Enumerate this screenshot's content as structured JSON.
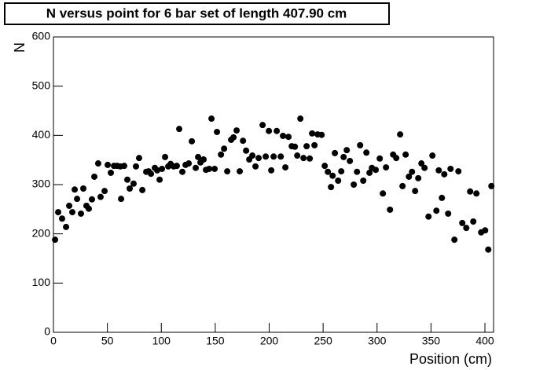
{
  "chart_data": {
    "type": "scatter",
    "title": "N versus point for 6 bar set of length 407.90 cm",
    "x_label": "Position (cm)",
    "y_label": "N",
    "color": "#000000",
    "xlim": [
      0,
      408
    ],
    "ylim": [
      0,
      600
    ],
    "xticks": [
      0,
      50,
      100,
      150,
      200,
      250,
      300,
      350,
      400
    ],
    "yticks": [
      0,
      100,
      200,
      300,
      400,
      500,
      600
    ],
    "series": [
      {
        "x": [
          1.5,
          4.4,
          8.0,
          11.7,
          14.6,
          17.5,
          19.7,
          21.9,
          25.5,
          27.7,
          30.6,
          32.8,
          35.7,
          37.9,
          41.5,
          43.7,
          47.4,
          50.3,
          53.2,
          56.1,
          59.0,
          62.0,
          62.7,
          65.6,
          68.5,
          70.7,
          74.3,
          76.5,
          79.4,
          82.4,
          86.0,
          88.2,
          90.4,
          94.0,
          96.2,
          98.4,
          100.6,
          103.5,
          106.4,
          108.6,
          111.5,
          114.4,
          116.6,
          119.5,
          122.5,
          125.4,
          128.3,
          131.9,
          134.1,
          136.3,
          139.2,
          141.4,
          144.3,
          146.5,
          149.4,
          151.6,
          155.3,
          158.2,
          161.1,
          164.7,
          166.9,
          169.8,
          172.7,
          175.7,
          178.6,
          181.5,
          184.4,
          187.3,
          190.2,
          193.9,
          196.8,
          199.7,
          201.9,
          204.1,
          207.0,
          210.7,
          212.8,
          215.0,
          217.9,
          220.9,
          223.8,
          226.0,
          228.9,
          231.8,
          234.7,
          237.6,
          239.8,
          242.0,
          244.9,
          248.6,
          251.5,
          254.4,
          257.3,
          258.8,
          260.9,
          263.9,
          266.8,
          269.0,
          271.9,
          274.8,
          278.4,
          281.4,
          284.3,
          287.2,
          290.1,
          293.0,
          295.2,
          298.8,
          302.5,
          305.4,
          308.3,
          312.0,
          314.9,
          317.8,
          321.4,
          323.6,
          326.5,
          329.5,
          332.4,
          335.3,
          338.2,
          341.1,
          344.0,
          347.7,
          351.3,
          355.0,
          357.2,
          360.1,
          362.3,
          365.9,
          368.1,
          371.7,
          375.4,
          379.0,
          382.7,
          386.3,
          389.2,
          392.1,
          396.5,
          400.2,
          403.1,
          406.0
        ],
        "y": [
          188,
          244,
          231,
          214,
          257,
          244,
          290,
          271,
          241,
          292,
          257,
          251,
          270,
          316,
          343,
          275,
          287,
          340,
          324,
          338,
          338,
          337,
          271,
          338,
          310,
          292,
          302,
          337,
          354,
          289,
          326,
          327,
          322,
          334,
          329,
          310,
          332,
          356,
          337,
          342,
          337,
          338,
          413,
          326,
          340,
          343,
          388,
          334,
          356,
          345,
          351,
          330,
          332,
          434,
          332,
          407,
          361,
          373,
          327,
          391,
          396,
          410,
          327,
          389,
          369,
          351,
          359,
          337,
          354,
          421,
          357,
          409,
          329,
          357,
          409,
          357,
          399,
          335,
          397,
          378,
          377,
          359,
          434,
          354,
          378,
          353,
          404,
          380,
          402,
          401,
          338,
          326,
          295,
          318,
          364,
          308,
          327,
          356,
          370,
          348,
          300,
          326,
          380,
          308,
          365,
          324,
          334,
          330,
          353,
          282,
          335,
          249,
          361,
          354,
          402,
          297,
          361,
          316,
          326,
          287,
          313,
          343,
          334,
          235,
          359,
          247,
          329,
          273,
          321,
          241,
          332,
          188,
          327,
          222,
          212,
          286,
          225,
          282,
          203,
          207,
          168,
          297
        ]
      }
    ]
  }
}
